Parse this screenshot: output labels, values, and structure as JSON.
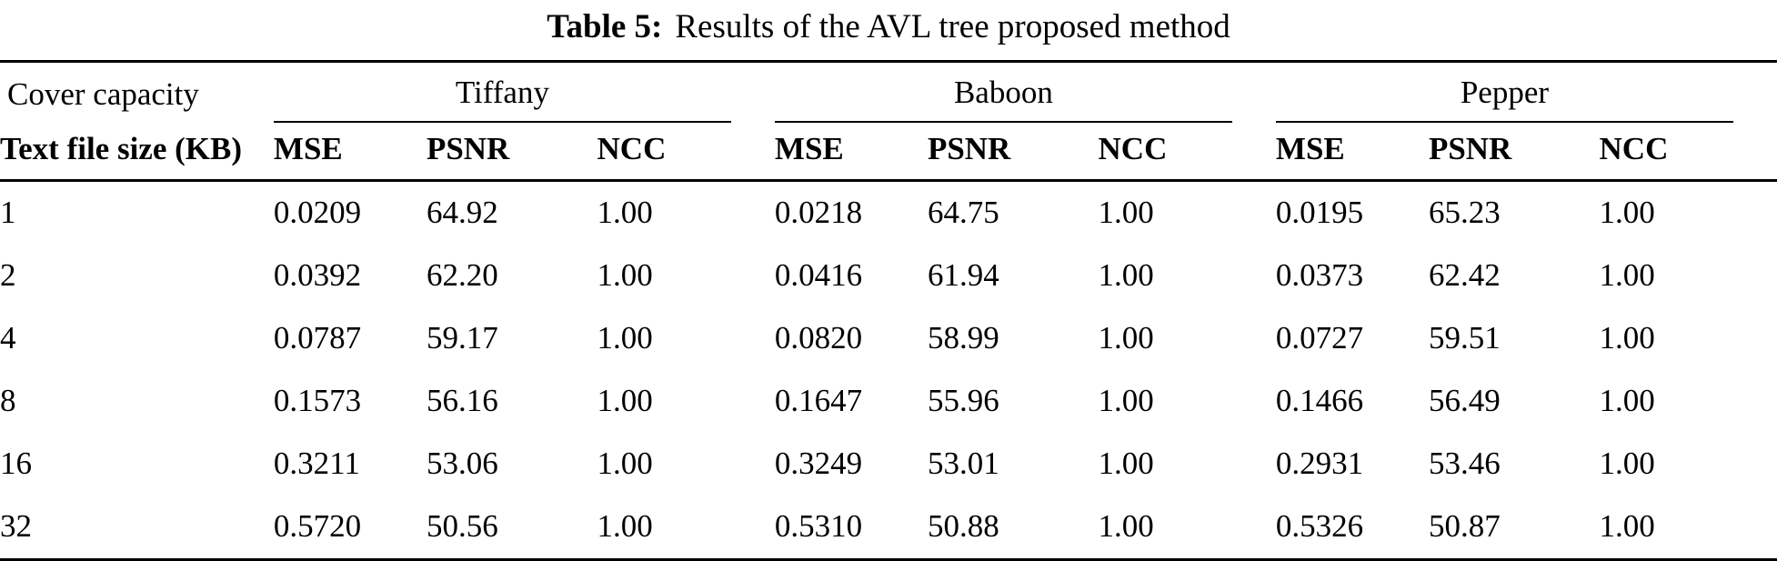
{
  "caption": {
    "label": "Table 5:",
    "text": "Results of the AVL tree proposed method"
  },
  "header": {
    "col1_line1": "Cover capacity",
    "col1_line2": "Text file size (KB)",
    "groups": [
      {
        "name": "Tiffany"
      },
      {
        "name": "Baboon"
      },
      {
        "name": "Pepper"
      }
    ],
    "metrics": [
      "MSE",
      "PSNR",
      "NCC"
    ]
  },
  "rows": [
    {
      "size": "1",
      "values": [
        "0.0209",
        "64.92",
        "1.00",
        "0.0218",
        "64.75",
        "1.00",
        "0.0195",
        "65.23",
        "1.00"
      ]
    },
    {
      "size": "2",
      "values": [
        "0.0392",
        "62.20",
        "1.00",
        "0.0416",
        "61.94",
        "1.00",
        "0.0373",
        "62.42",
        "1.00"
      ]
    },
    {
      "size": "4",
      "values": [
        "0.0787",
        "59.17",
        "1.00",
        "0.0820",
        "58.99",
        "1.00",
        "0.0727",
        "59.51",
        "1.00"
      ]
    },
    {
      "size": "8",
      "values": [
        "0.1573",
        "56.16",
        "1.00",
        "0.1647",
        "55.96",
        "1.00",
        "0.1466",
        "56.49",
        "1.00"
      ]
    },
    {
      "size": "16",
      "values": [
        "0.3211",
        "53.06",
        "1.00",
        "0.3249",
        "53.01",
        "1.00",
        "0.2931",
        "53.46",
        "1.00"
      ]
    },
    {
      "size": "32",
      "values": [
        "0.5720",
        "50.56",
        "1.00",
        "0.5310",
        "50.88",
        "1.00",
        "0.5326",
        "50.87",
        "1.00"
      ]
    }
  ]
}
